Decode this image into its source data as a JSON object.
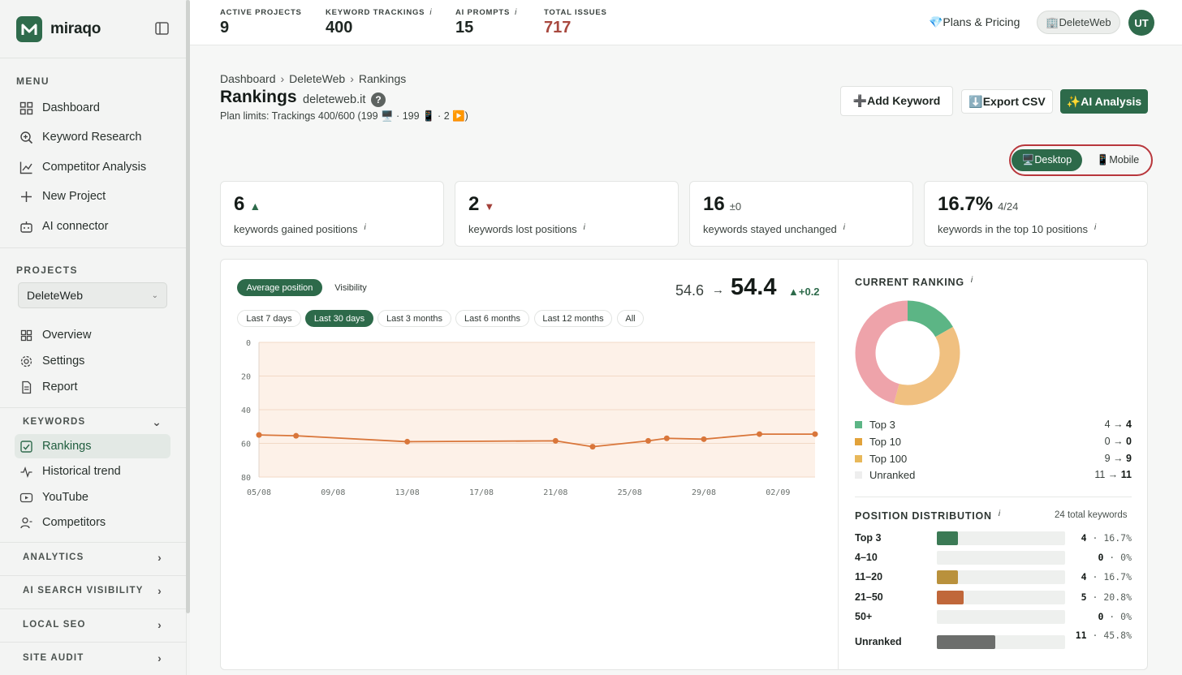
{
  "brand": {
    "name": "miraqo"
  },
  "sidebar": {
    "menu_heading": "MENU",
    "menu": [
      {
        "label": "Dashboard",
        "icon": "grid-icon"
      },
      {
        "label": "Keyword Research",
        "icon": "search-plus-icon"
      },
      {
        "label": "Competitor Analysis",
        "icon": "line-chart-icon"
      },
      {
        "label": "New Project",
        "icon": "plus-icon"
      },
      {
        "label": "AI connector",
        "icon": "robot-icon"
      }
    ],
    "projects_heading": "PROJECTS",
    "project_select": "DeleteWeb",
    "project_items": [
      {
        "label": "Overview",
        "icon": "grid-icon"
      },
      {
        "label": "Settings",
        "icon": "gear-icon"
      },
      {
        "label": "Report",
        "icon": "document-icon"
      }
    ],
    "keywords_heading": "KEYWORDS",
    "keyword_items": [
      {
        "label": "Rankings",
        "icon": "checkbox-icon",
        "active": true
      },
      {
        "label": "Historical trend",
        "icon": "pulse-icon"
      },
      {
        "label": "YouTube",
        "icon": "youtube-icon"
      },
      {
        "label": "Competitors",
        "icon": "users-icon"
      }
    ],
    "groups": [
      "ANALYTICS",
      "AI SEARCH VISIBILITY",
      "LOCAL SEO",
      "SITE AUDIT"
    ]
  },
  "topbar": {
    "stats": [
      {
        "label": "ACTIVE PROJECTS",
        "value": "9",
        "info": false
      },
      {
        "label": "KEYWORD TRACKINGS",
        "value": "400",
        "info": true
      },
      {
        "label": "AI PROMPTS",
        "value": "15",
        "info": true
      },
      {
        "label": "TOTAL ISSUES",
        "value": "717",
        "info": false
      }
    ],
    "info_mark": "i",
    "plans": "💎Plans & Pricing",
    "workspace": "🏢DeleteWeb",
    "avatar": "UT"
  },
  "page": {
    "breadcrumb": [
      "Dashboard",
      "DeleteWeb",
      "Rankings"
    ],
    "title": "Rankings",
    "domain": "deleteweb.it",
    "help": "?",
    "plan_limits": "Plan limits: Trackings 400/600 (199 🖥️ · 199 📱 · 2 ▶️)",
    "buttons": {
      "add": "➕Add Keyword",
      "export": "⬇️Export CSV",
      "ai": "✨AI Analysis"
    },
    "device": {
      "desktop": "🖥️Desktop",
      "mobile": "📱Mobile"
    }
  },
  "kpis": [
    {
      "value": "6",
      "suffix": "▲",
      "label": "keywords gained positions"
    },
    {
      "value": "2",
      "suffix": "▼",
      "label": "keywords lost positions"
    },
    {
      "value": "16",
      "suffix": "±0",
      "label": "keywords stayed unchanged"
    },
    {
      "value": "16.7%",
      "suffix": "4/24",
      "label": "keywords in the top 10 positions"
    }
  ],
  "chart_controls": {
    "metrics": [
      "Average position",
      "Visibility"
    ],
    "ranges": [
      "Last 7 days",
      "Last 30 days",
      "Last 3 months",
      "Last 6 months",
      "Last 12 months",
      "All"
    ],
    "selected_range": "Last 30 days",
    "summary": {
      "old": "54.6",
      "arrow": "→",
      "new": "54.4",
      "delta": "▲+0.2"
    }
  },
  "chart_data": {
    "type": "line",
    "x": [
      "05/08",
      "07/08",
      "13/08",
      "21/08",
      "23/08",
      "26/08",
      "27/08",
      "29/08",
      "01/09",
      "04/09"
    ],
    "x_positions_days": [
      0,
      2,
      8,
      16,
      18,
      21,
      22,
      24,
      27,
      30
    ],
    "xticks": [
      "05/08",
      "09/08",
      "13/08",
      "17/08",
      "21/08",
      "25/08",
      "29/08",
      "02/09"
    ],
    "series": [
      {
        "values": [
          55,
          55.5,
          59,
          58.5,
          62,
          58.5,
          57,
          57.5,
          54.5,
          54.5
        ],
        "color": "#d9763a"
      }
    ],
    "yticks": [
      "0",
      "20",
      "40",
      "60",
      "80"
    ],
    "ylim": [
      0,
      80
    ],
    "y_inverted": true,
    "grid": true,
    "fill_color": "#fdf1e8"
  },
  "ranking": {
    "title": "CURRENT RANKING",
    "chart_data": {
      "type": "pie",
      "labels": [
        "Top 3",
        "Top 10",
        "Top 100",
        "Unranked"
      ],
      "values": [
        4,
        0,
        9,
        11
      ],
      "colors": [
        "#5cb585",
        "#eab04c",
        "#f0c080",
        "#eea3aa"
      ]
    },
    "legend": [
      {
        "label": "Top 3",
        "from": "4",
        "to": "4",
        "color": "#5cb585"
      },
      {
        "label": "Top 10",
        "from": "0",
        "to": "0",
        "color": "#e2a23a"
      },
      {
        "label": "Top 100",
        "from": "9",
        "to": "9",
        "color": "#e8b85a"
      },
      {
        "label": "Unranked",
        "from": "11",
        "to": "11",
        "color": "#eeeeee"
      }
    ],
    "arrow": "→"
  },
  "distribution": {
    "title": "POSITION DISTRIBUTION",
    "total": "24 total keywords",
    "rows": [
      {
        "label": "Top 3",
        "count": "4",
        "pct": "16.7%",
        "fraction": 0.167,
        "color": "#3b7a55"
      },
      {
        "label": "4–10",
        "count": "0",
        "pct": "0%",
        "fraction": 0,
        "color": "#cccccc"
      },
      {
        "label": "11–20",
        "count": "4",
        "pct": "16.7%",
        "fraction": 0.167,
        "color": "#b9913c"
      },
      {
        "label": "21–50",
        "count": "5",
        "pct": "20.8%",
        "fraction": 0.208,
        "color": "#c0673a"
      },
      {
        "label": "50+",
        "count": "0",
        "pct": "0%",
        "fraction": 0,
        "color": "#cccccc"
      },
      {
        "label": "Unranked",
        "count": "11",
        "pct": "45.8%",
        "fraction": 0.458,
        "color": "#6c6e6c"
      }
    ]
  }
}
